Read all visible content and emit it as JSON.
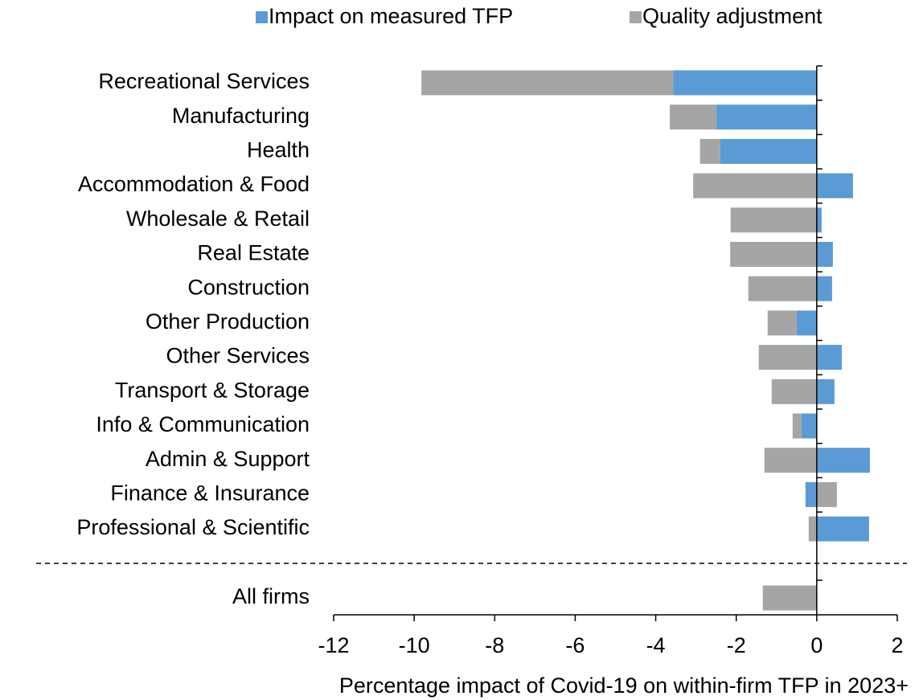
{
  "chart_data": {
    "type": "bar",
    "orientation": "horizontal",
    "stacked": true,
    "categories": [
      "Recreational Services",
      "Manufacturing",
      "Health",
      "Accommodation & Food",
      "Wholesale & Retail",
      "Real Estate",
      "Construction",
      "Other Production",
      "Other Services",
      "Transport & Storage",
      "Info & Communication",
      "Admin & Support",
      "Finance & Insurance",
      "Professional & Scientific",
      "All firms"
    ],
    "series": [
      {
        "name": "Impact on measured TFP",
        "color": "#5b9bd5",
        "values": [
          -3.57,
          -2.5,
          -2.4,
          0.9,
          0.12,
          0.4,
          0.38,
          -0.5,
          0.62,
          0.44,
          -0.38,
          1.32,
          -0.28,
          1.3,
          0
        ]
      },
      {
        "name": "Quality adjustment",
        "color": "#a5a5a5",
        "values": [
          -6.25,
          -1.15,
          -0.5,
          -3.07,
          -2.14,
          -2.15,
          -1.7,
          -0.72,
          -1.44,
          -1.12,
          -0.22,
          -1.3,
          0.5,
          -0.2,
          -1.34
        ]
      }
    ],
    "xlabel": "Percentage impact of Covid-19 on within-firm TFP in 2023+",
    "xlim": [
      -12,
      2
    ],
    "xticks": [
      -12,
      -10,
      -8,
      -6,
      -4,
      -2,
      0,
      2
    ]
  }
}
